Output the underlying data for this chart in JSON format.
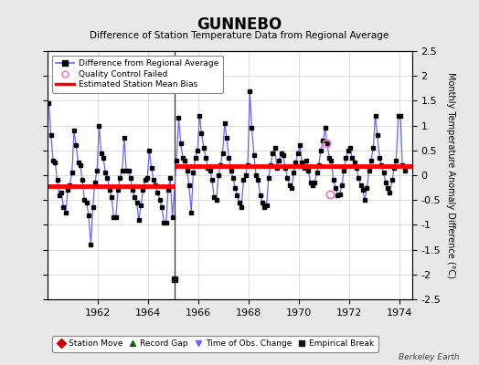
{
  "title": "GUNNEBO",
  "subtitle": "Difference of Station Temperature Data from Regional Average",
  "ylabel": "Monthly Temperature Anomaly Difference (°C)",
  "watermark": "Berkeley Earth",
  "xlim": [
    1960.0,
    1974.5
  ],
  "ylim": [
    -2.5,
    2.5
  ],
  "yticks": [
    -2.5,
    -2.0,
    -1.5,
    -1.0,
    -0.5,
    0.0,
    0.5,
    1.0,
    1.5,
    2.0,
    2.5
  ],
  "xticks": [
    1962,
    1964,
    1966,
    1968,
    1970,
    1972,
    1974
  ],
  "line_color": "#6666ff",
  "marker_color": "#000000",
  "bias_color": "#ff0000",
  "break_x": 1965.04,
  "bias1_y": -0.22,
  "bias2_y": 0.18,
  "bias1_xstart": 1960.0,
  "bias1_xend": 1965.04,
  "bias2_xstart": 1965.04,
  "bias2_xend": 1974.5,
  "empirical_break_x": 1965.04,
  "empirical_break_y": -2.1,
  "qc_fail_points": [
    [
      1971.08,
      0.65
    ],
    [
      1971.25,
      -0.38
    ]
  ],
  "data": [
    [
      1960.04,
      1.45
    ],
    [
      1960.12,
      0.8
    ],
    [
      1960.21,
      0.3
    ],
    [
      1960.29,
      0.25
    ],
    [
      1960.37,
      -0.1
    ],
    [
      1960.46,
      -0.4
    ],
    [
      1960.54,
      -0.35
    ],
    [
      1960.62,
      -0.65
    ],
    [
      1960.71,
      -0.75
    ],
    [
      1960.79,
      -0.3
    ],
    [
      1960.87,
      -0.2
    ],
    [
      1960.96,
      0.05
    ],
    [
      1961.04,
      0.9
    ],
    [
      1961.12,
      0.6
    ],
    [
      1961.21,
      0.25
    ],
    [
      1961.29,
      0.2
    ],
    [
      1961.37,
      -0.1
    ],
    [
      1961.46,
      -0.5
    ],
    [
      1961.54,
      -0.55
    ],
    [
      1961.62,
      -0.8
    ],
    [
      1961.71,
      -1.4
    ],
    [
      1961.79,
      -0.65
    ],
    [
      1961.87,
      -0.15
    ],
    [
      1961.96,
      0.1
    ],
    [
      1962.04,
      1.0
    ],
    [
      1962.12,
      0.45
    ],
    [
      1962.21,
      0.35
    ],
    [
      1962.29,
      0.05
    ],
    [
      1962.37,
      -0.05
    ],
    [
      1962.46,
      -0.3
    ],
    [
      1962.54,
      -0.45
    ],
    [
      1962.62,
      -0.85
    ],
    [
      1962.71,
      -0.85
    ],
    [
      1962.79,
      -0.3
    ],
    [
      1962.87,
      -0.05
    ],
    [
      1962.96,
      0.1
    ],
    [
      1963.04,
      0.75
    ],
    [
      1963.12,
      0.1
    ],
    [
      1963.21,
      0.1
    ],
    [
      1963.29,
      -0.05
    ],
    [
      1963.37,
      -0.3
    ],
    [
      1963.46,
      -0.45
    ],
    [
      1963.54,
      -0.55
    ],
    [
      1963.62,
      -0.9
    ],
    [
      1963.71,
      -0.6
    ],
    [
      1963.79,
      -0.3
    ],
    [
      1963.87,
      -0.1
    ],
    [
      1963.96,
      -0.05
    ],
    [
      1964.04,
      0.5
    ],
    [
      1964.12,
      0.15
    ],
    [
      1964.21,
      -0.1
    ],
    [
      1964.29,
      -0.2
    ],
    [
      1964.37,
      -0.35
    ],
    [
      1964.46,
      -0.5
    ],
    [
      1964.54,
      -0.65
    ],
    [
      1964.62,
      -0.95
    ],
    [
      1964.71,
      -0.95
    ],
    [
      1964.79,
      -0.3
    ],
    [
      1964.87,
      -0.05
    ],
    [
      1964.96,
      -0.85
    ],
    [
      1965.12,
      0.3
    ],
    [
      1965.21,
      1.15
    ],
    [
      1965.29,
      0.65
    ],
    [
      1965.37,
      0.35
    ],
    [
      1965.46,
      0.3
    ],
    [
      1965.54,
      0.1
    ],
    [
      1965.62,
      -0.2
    ],
    [
      1965.71,
      -0.75
    ],
    [
      1965.79,
      0.05
    ],
    [
      1965.87,
      0.35
    ],
    [
      1965.96,
      0.5
    ],
    [
      1966.04,
      1.2
    ],
    [
      1966.12,
      0.85
    ],
    [
      1966.21,
      0.55
    ],
    [
      1966.29,
      0.35
    ],
    [
      1966.37,
      0.15
    ],
    [
      1966.46,
      0.1
    ],
    [
      1966.54,
      -0.1
    ],
    [
      1966.62,
      -0.45
    ],
    [
      1966.71,
      -0.5
    ],
    [
      1966.79,
      0.0
    ],
    [
      1966.87,
      0.2
    ],
    [
      1966.96,
      0.45
    ],
    [
      1967.04,
      1.05
    ],
    [
      1967.12,
      0.75
    ],
    [
      1967.21,
      0.35
    ],
    [
      1967.29,
      0.1
    ],
    [
      1967.37,
      -0.05
    ],
    [
      1967.46,
      -0.25
    ],
    [
      1967.54,
      -0.4
    ],
    [
      1967.62,
      -0.55
    ],
    [
      1967.71,
      -0.65
    ],
    [
      1967.79,
      -0.1
    ],
    [
      1967.87,
      0.0
    ],
    [
      1967.96,
      0.2
    ],
    [
      1968.04,
      1.7
    ],
    [
      1968.12,
      0.95
    ],
    [
      1968.21,
      0.4
    ],
    [
      1968.29,
      0.0
    ],
    [
      1968.37,
      -0.1
    ],
    [
      1968.46,
      -0.4
    ],
    [
      1968.54,
      -0.55
    ],
    [
      1968.62,
      -0.65
    ],
    [
      1968.71,
      -0.6
    ],
    [
      1968.79,
      -0.05
    ],
    [
      1968.87,
      0.2
    ],
    [
      1968.96,
      0.45
    ],
    [
      1969.04,
      0.55
    ],
    [
      1969.12,
      0.15
    ],
    [
      1969.21,
      0.3
    ],
    [
      1969.29,
      0.45
    ],
    [
      1969.37,
      0.4
    ],
    [
      1969.46,
      0.15
    ],
    [
      1969.54,
      -0.05
    ],
    [
      1969.62,
      -0.2
    ],
    [
      1969.71,
      -0.25
    ],
    [
      1969.79,
      0.05
    ],
    [
      1969.87,
      0.25
    ],
    [
      1969.96,
      0.45
    ],
    [
      1970.04,
      0.6
    ],
    [
      1970.12,
      0.25
    ],
    [
      1970.21,
      0.15
    ],
    [
      1970.29,
      0.3
    ],
    [
      1970.37,
      0.1
    ],
    [
      1970.46,
      -0.15
    ],
    [
      1970.54,
      -0.2
    ],
    [
      1970.62,
      -0.15
    ],
    [
      1970.71,
      0.05
    ],
    [
      1970.79,
      0.2
    ],
    [
      1970.87,
      0.5
    ],
    [
      1970.96,
      0.7
    ],
    [
      1971.04,
      0.95
    ],
    [
      1971.12,
      0.65
    ],
    [
      1971.21,
      0.35
    ],
    [
      1971.29,
      0.3
    ],
    [
      1971.37,
      -0.1
    ],
    [
      1971.46,
      -0.25
    ],
    [
      1971.54,
      -0.4
    ],
    [
      1971.62,
      -0.38
    ],
    [
      1971.71,
      -0.2
    ],
    [
      1971.79,
      0.1
    ],
    [
      1971.87,
      0.35
    ],
    [
      1971.96,
      0.5
    ],
    [
      1972.04,
      0.55
    ],
    [
      1972.12,
      0.35
    ],
    [
      1972.21,
      0.25
    ],
    [
      1972.29,
      0.15
    ],
    [
      1972.37,
      -0.05
    ],
    [
      1972.46,
      -0.2
    ],
    [
      1972.54,
      -0.3
    ],
    [
      1972.62,
      -0.5
    ],
    [
      1972.71,
      -0.25
    ],
    [
      1972.79,
      0.1
    ],
    [
      1972.87,
      0.3
    ],
    [
      1972.96,
      0.55
    ],
    [
      1973.04,
      1.2
    ],
    [
      1973.12,
      0.8
    ],
    [
      1973.21,
      0.35
    ],
    [
      1973.29,
      0.2
    ],
    [
      1973.37,
      0.05
    ],
    [
      1973.46,
      -0.15
    ],
    [
      1973.54,
      -0.25
    ],
    [
      1973.62,
      -0.35
    ],
    [
      1973.71,
      -0.1
    ],
    [
      1973.79,
      0.15
    ],
    [
      1973.87,
      0.3
    ],
    [
      1973.96,
      1.2
    ],
    [
      1974.04,
      1.2
    ],
    [
      1974.12,
      0.2
    ],
    [
      1974.21,
      0.1
    ]
  ],
  "bg_color": "#e8e8e8",
  "plot_bg_color": "#ffffff",
  "grid_color": "#d0d0d0"
}
